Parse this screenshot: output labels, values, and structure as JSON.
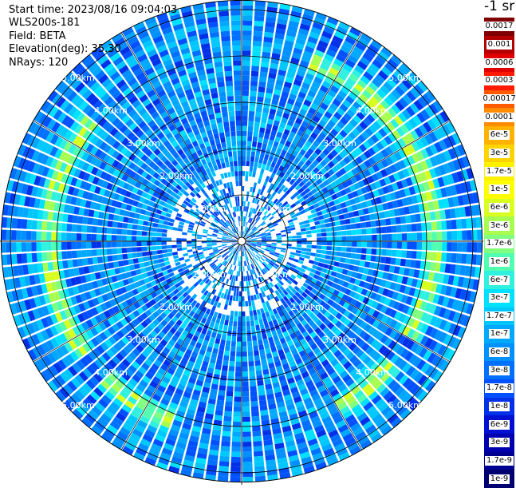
{
  "info": {
    "start_time": "Start time: 2023/08/16 09:04:03",
    "instrument": "WLS200s-181",
    "field": "Field: BETA",
    "elevation": "Elevation(deg): 35.30",
    "nrays": "NRays: 120"
  },
  "colorbar": {
    "unit": "-1 sr",
    "labels": [
      "0.0017",
      "0.001",
      "0.0006",
      "0.0003",
      "0.00017",
      "0.0001",
      "6e-5",
      "3e-5",
      "1.7e-5",
      "1e-5",
      "6e-6",
      "3e-6",
      "1.7e-6",
      "1e-6",
      "6e-7",
      "3e-7",
      "1.7e-7",
      "1e-7",
      "6e-8",
      "3e-8",
      "1.7e-8",
      "1e-8",
      "6e-9",
      "3e-9",
      "1.7e-9",
      "1e-9"
    ],
    "colors": [
      "#800000",
      "#b30000",
      "#e00000",
      "#ff1a00",
      "#ff5a00",
      "#ff8c00",
      "#ffb200",
      "#ffd400",
      "#fff000",
      "#ffff00",
      "#d8ff20",
      "#a8ff50",
      "#80ff80",
      "#50ffb0",
      "#30f0e0",
      "#00e0ff",
      "#00c8ff",
      "#00a8ff",
      "#0090ff",
      "#0070ff",
      "#0050ff",
      "#0030e8",
      "#0010d0",
      "#0000b0",
      "#000090",
      "#000070"
    ]
  },
  "chart_data": {
    "type": "heatmap",
    "projection": "polar PPI",
    "field": "BETA",
    "nrays": 120,
    "range_rings_km": [
      1,
      2,
      3,
      4,
      5
    ],
    "range_labels": [
      "1.00km",
      "2.00km",
      "3.00km",
      "4.00km",
      "5.00km"
    ],
    "max_range_km": 5.2,
    "azimuth_gridlines_deg": [
      0,
      30,
      60,
      90,
      120,
      150,
      180,
      210,
      240,
      270,
      300,
      330
    ],
    "background_value": "1e-8",
    "enhanced_ring": {
      "range_km": 4.2,
      "approx_value": "1e-7",
      "azimuth_segments_deg": [
        [
          20,
          120
        ],
        [
          130,
          150
        ],
        [
          200,
          225
        ],
        [
          235,
          310
        ]
      ]
    },
    "colorbar_range": [
      "1e-9",
      "0.0017"
    ]
  }
}
